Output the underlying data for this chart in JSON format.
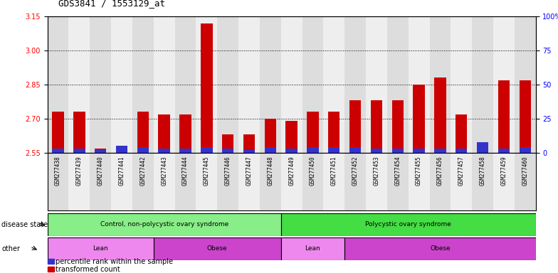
{
  "title": "GDS3841 / 1553129_at",
  "samples": [
    "GSM277438",
    "GSM277439",
    "GSM277440",
    "GSM277441",
    "GSM277442",
    "GSM277443",
    "GSM277444",
    "GSM277445",
    "GSM277446",
    "GSM277447",
    "GSM277448",
    "GSM277449",
    "GSM277450",
    "GSM277451",
    "GSM277452",
    "GSM277453",
    "GSM277454",
    "GSM277455",
    "GSM277456",
    "GSM277457",
    "GSM277458",
    "GSM277459",
    "GSM277460"
  ],
  "transformed_count": [
    2.73,
    2.73,
    2.57,
    2.56,
    2.73,
    2.72,
    2.72,
    3.12,
    2.63,
    2.63,
    2.7,
    2.69,
    2.73,
    2.73,
    2.78,
    2.78,
    2.78,
    2.85,
    2.88,
    2.72,
    2.56,
    2.87,
    2.87
  ],
  "percentile_rank": [
    3,
    3,
    2,
    5,
    4,
    3,
    3,
    4,
    3,
    2,
    4,
    3,
    4,
    4,
    4,
    3,
    3,
    3,
    3,
    3,
    8,
    3,
    4
  ],
  "ylim_left": [
    2.55,
    3.15
  ],
  "ylim_right": [
    0,
    100
  ],
  "yticks_left": [
    2.55,
    2.7,
    2.85,
    3.0,
    3.15
  ],
  "yticks_right": [
    0,
    25,
    50,
    75,
    100
  ],
  "ytick_labels_right": [
    "0",
    "25",
    "50",
    "75",
    "100%"
  ],
  "bar_color_red": "#CC0000",
  "bar_color_blue": "#3333CC",
  "bar_width": 0.55,
  "disease_state_groups": [
    {
      "label": "Control, non-polycystic ovary syndrome",
      "start": 0,
      "end": 10,
      "color": "#88EE88"
    },
    {
      "label": "Polycystic ovary syndrome",
      "start": 11,
      "end": 22,
      "color": "#44DD44"
    }
  ],
  "other_groups": [
    {
      "label": "Lean",
      "start": 0,
      "end": 4,
      "color": "#EE88EE"
    },
    {
      "label": "Obese",
      "start": 5,
      "end": 10,
      "color": "#CC44CC"
    },
    {
      "label": "Lean",
      "start": 11,
      "end": 13,
      "color": "#EE88EE"
    },
    {
      "label": "Obese",
      "start": 14,
      "end": 22,
      "color": "#CC44CC"
    }
  ],
  "disease_state_label": "disease state",
  "other_label": "other",
  "legend_items": [
    {
      "label": "transformed count",
      "color": "#CC0000"
    },
    {
      "label": "percentile rank within the sample",
      "color": "#3333CC"
    }
  ],
  "bg_color": "#FFFFFF",
  "axis_bg": "#FFFFFF",
  "col_bg_odd": "#DDDDDD",
  "col_bg_even": "#EEEEEE",
  "grid_color": "#000000",
  "title_fontsize": 9,
  "tick_fontsize": 7,
  "sample_fontsize": 5.5
}
